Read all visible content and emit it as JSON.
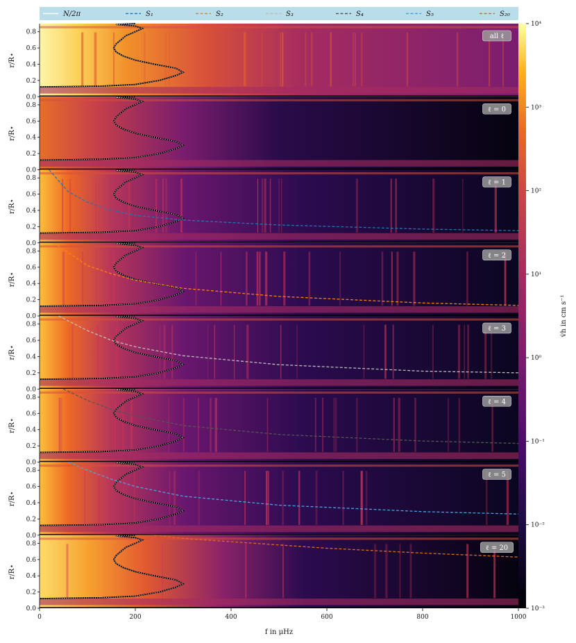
{
  "chart_data": {
    "type": "heatmap",
    "xlabel": "f in μHz",
    "ylabel": "r/R⋆",
    "xlim": [
      0,
      1000
    ],
    "ylim": [
      0.0,
      0.9
    ],
    "x_ticks": [
      "0",
      "200",
      "400",
      "600",
      "800",
      "1000"
    ],
    "y_ticks": [
      "0.0",
      "0.2",
      "0.4",
      "0.6",
      "0.8"
    ],
    "colorbar": {
      "label": "v̇h in cm s⁻¹",
      "scale": "log",
      "range": [
        0.001,
        10000
      ],
      "ticks": [
        "10⁻³",
        "10⁻²",
        "10⁻¹",
        "10⁰",
        "10¹",
        "10²",
        "10³",
        "10⁴"
      ],
      "colormap": "inferno"
    },
    "legend": {
      "placement": "top",
      "entries": [
        {
          "label": "N/2π",
          "color": "#ffffff",
          "style": "solid"
        },
        {
          "label": "S₁",
          "color": "#1f77b4",
          "style": "dashed"
        },
        {
          "label": "S₂",
          "color": "#ff7f0e",
          "style": "dashed"
        },
        {
          "label": "S₃",
          "color": "#bdbdbd",
          "style": "dashed"
        },
        {
          "label": "S₄",
          "color": "#555555",
          "style": "dashed"
        },
        {
          "label": "S₅",
          "color": "#4aa3df",
          "style": "dashed"
        },
        {
          "label": "S₂₀",
          "color": "#e06c1a",
          "style": "dashed"
        }
      ]
    },
    "panels": [
      {
        "tag": "all ℓ",
        "ell": null,
        "lamb_color": null
      },
      {
        "tag": "ℓ = 0",
        "ell": 0,
        "lamb_color": null
      },
      {
        "tag": "ℓ = 1",
        "ell": 1,
        "lamb_color": "#1f77b4"
      },
      {
        "tag": "ℓ = 2",
        "ell": 2,
        "lamb_color": "#ff7f0e"
      },
      {
        "tag": "ℓ = 3",
        "ell": 3,
        "lamb_color": "#bdbdbd"
      },
      {
        "tag": "ℓ = 4",
        "ell": 4,
        "lamb_color": "#555555"
      },
      {
        "tag": "ℓ = 5",
        "ell": 5,
        "lamb_color": "#4aa3df"
      },
      {
        "tag": "ℓ = 20",
        "ell": 20,
        "lamb_color": "#e06c1a"
      }
    ],
    "brunt_vaisala_profile": {
      "r": [
        0.12,
        0.13,
        0.15,
        0.2,
        0.26,
        0.3,
        0.35,
        0.4,
        0.45,
        0.5,
        0.55,
        0.6,
        0.65,
        0.7,
        0.75,
        0.8,
        0.84,
        0.87,
        0.89,
        0.9
      ],
      "f": [
        0,
        130,
        200,
        250,
        285,
        300,
        285,
        240,
        200,
        175,
        160,
        155,
        160,
        170,
        180,
        200,
        215,
        200,
        160,
        200
      ]
    },
    "lamb_curves": {
      "S1": {
        "f": [
          20,
          60,
          100,
          150,
          200,
          300,
          500,
          800,
          1000
        ],
        "r": [
          0.9,
          0.63,
          0.5,
          0.4,
          0.34,
          0.28,
          0.22,
          0.17,
          0.15
        ]
      },
      "S2": {
        "f": [
          30,
          100,
          150,
          200,
          300,
          500,
          800,
          1000
        ],
        "r": [
          0.9,
          0.62,
          0.52,
          0.44,
          0.34,
          0.24,
          0.16,
          0.13
        ]
      },
      "S3": {
        "f": [
          40,
          100,
          150,
          200,
          300,
          500,
          800,
          1000
        ],
        "r": [
          0.9,
          0.72,
          0.6,
          0.52,
          0.41,
          0.3,
          0.22,
          0.2
        ]
      },
      "S4": {
        "f": [
          50,
          100,
          150,
          200,
          300,
          500,
          800,
          1000
        ],
        "r": [
          0.9,
          0.76,
          0.65,
          0.57,
          0.45,
          0.34,
          0.26,
          0.23
        ]
      },
      "S5": {
        "f": [
          60,
          100,
          150,
          200,
          300,
          500,
          800,
          1000
        ],
        "r": [
          0.9,
          0.8,
          0.69,
          0.6,
          0.48,
          0.37,
          0.29,
          0.26
        ]
      },
      "S20": {
        "f": [
          240,
          300,
          400,
          500,
          600,
          800,
          1000
        ],
        "r": [
          0.9,
          0.86,
          0.82,
          0.78,
          0.74,
          0.68,
          0.63
        ]
      }
    }
  }
}
